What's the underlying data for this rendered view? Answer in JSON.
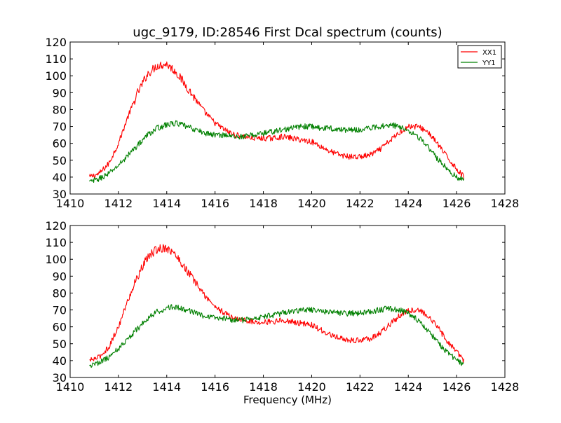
{
  "figure": {
    "title": "ugc_9179, ID:28546 First Dcal spectrum (counts)",
    "xlabel": "Frequency (MHz)"
  },
  "chart_data": [
    {
      "type": "line",
      "title": "ugc_9179, ID:28546 First Dcal spectrum (counts)",
      "xlabel": "",
      "ylabel": "",
      "xlim": [
        1410,
        1428
      ],
      "ylim": [
        30,
        120
      ],
      "xticks": [
        1410,
        1412,
        1414,
        1416,
        1418,
        1420,
        1422,
        1424,
        1426,
        1428
      ],
      "yticks": [
        30,
        40,
        50,
        60,
        70,
        80,
        90,
        100,
        110,
        120
      ],
      "grid": false,
      "legend": {
        "placement": "top-right",
        "entries": [
          "XX1",
          "YY1"
        ]
      },
      "series": [
        {
          "name": "XX1",
          "color": "#ff0000",
          "x": [
            1410.8,
            1411.2,
            1411.6,
            1412.0,
            1412.4,
            1412.8,
            1413.2,
            1413.6,
            1414.0,
            1414.4,
            1414.8,
            1415.2,
            1415.6,
            1416.0,
            1416.4,
            1416.8,
            1417.2,
            1417.6,
            1418.0,
            1418.4,
            1418.8,
            1419.2,
            1419.6,
            1420.0,
            1420.4,
            1420.8,
            1421.2,
            1421.6,
            1422.0,
            1422.4,
            1422.8,
            1423.2,
            1423.6,
            1424.0,
            1424.4,
            1424.8,
            1425.2,
            1425.6,
            1426.0,
            1426.3
          ],
          "values": [
            40,
            42,
            48,
            60,
            76,
            90,
            101,
            106,
            107,
            102,
            94,
            86,
            78,
            72,
            68,
            65,
            64,
            63,
            63,
            63,
            64,
            63,
            62,
            61,
            58,
            55,
            53,
            52,
            52,
            53,
            56,
            61,
            66,
            70,
            70,
            67,
            60,
            52,
            45,
            40
          ]
        },
        {
          "name": "YY1",
          "color": "#008000",
          "x": [
            1410.8,
            1411.2,
            1411.6,
            1412.0,
            1412.4,
            1412.8,
            1413.2,
            1413.6,
            1414.0,
            1414.4,
            1414.8,
            1415.2,
            1415.6,
            1416.0,
            1416.4,
            1416.8,
            1417.2,
            1417.6,
            1418.0,
            1418.4,
            1418.8,
            1419.2,
            1419.6,
            1420.0,
            1420.4,
            1420.8,
            1421.2,
            1421.6,
            1422.0,
            1422.4,
            1422.8,
            1423.2,
            1423.6,
            1424.0,
            1424.4,
            1424.8,
            1425.2,
            1425.6,
            1426.0,
            1426.3
          ],
          "values": [
            37,
            39,
            42,
            47,
            53,
            59,
            65,
            69,
            71,
            72,
            70,
            68,
            66,
            65,
            65,
            64,
            64,
            65,
            66,
            67,
            68,
            69,
            70,
            70,
            69,
            69,
            68,
            68,
            68,
            69,
            70,
            71,
            70,
            68,
            64,
            58,
            51,
            45,
            40,
            38
          ]
        }
      ]
    },
    {
      "type": "line",
      "title": "",
      "xlabel": "Frequency (MHz)",
      "ylabel": "",
      "xlim": [
        1410,
        1428
      ],
      "ylim": [
        30,
        120
      ],
      "xticks": [
        1410,
        1412,
        1414,
        1416,
        1418,
        1420,
        1422,
        1424,
        1426,
        1428
      ],
      "yticks": [
        30,
        40,
        50,
        60,
        70,
        80,
        90,
        100,
        110,
        120
      ],
      "grid": false,
      "legend": null,
      "series": [
        {
          "color": "#ff0000",
          "x": [
            1410.8,
            1411.2,
            1411.6,
            1412.0,
            1412.4,
            1412.8,
            1413.2,
            1413.6,
            1414.0,
            1414.4,
            1414.8,
            1415.2,
            1415.6,
            1416.0,
            1416.4,
            1416.8,
            1417.2,
            1417.6,
            1418.0,
            1418.4,
            1418.8,
            1419.2,
            1419.6,
            1420.0,
            1420.4,
            1420.8,
            1421.2,
            1421.6,
            1422.0,
            1422.4,
            1422.8,
            1423.2,
            1423.6,
            1424.0,
            1424.4,
            1424.8,
            1425.2,
            1425.6,
            1426.0,
            1426.3
          ],
          "values": [
            40,
            42,
            48,
            60,
            76,
            90,
            101,
            106,
            107,
            102,
            94,
            86,
            78,
            72,
            68,
            65,
            64,
            63,
            63,
            63,
            64,
            63,
            62,
            61,
            58,
            55,
            53,
            52,
            52,
            53,
            56,
            61,
            66,
            70,
            70,
            67,
            60,
            52,
            45,
            40
          ]
        },
        {
          "color": "#008000",
          "x": [
            1410.8,
            1411.2,
            1411.6,
            1412.0,
            1412.4,
            1412.8,
            1413.2,
            1413.6,
            1414.0,
            1414.4,
            1414.8,
            1415.2,
            1415.6,
            1416.0,
            1416.4,
            1416.8,
            1417.2,
            1417.6,
            1418.0,
            1418.4,
            1418.8,
            1419.2,
            1419.6,
            1420.0,
            1420.4,
            1420.8,
            1421.2,
            1421.6,
            1422.0,
            1422.4,
            1422.8,
            1423.2,
            1423.6,
            1424.0,
            1424.4,
            1424.8,
            1425.2,
            1425.6,
            1426.0,
            1426.3
          ],
          "values": [
            37,
            39,
            42,
            47,
            53,
            59,
            65,
            69,
            71,
            72,
            70,
            68,
            66,
            65,
            65,
            64,
            64,
            65,
            66,
            67,
            68,
            69,
            70,
            70,
            69,
            69,
            68,
            68,
            68,
            69,
            70,
            71,
            70,
            68,
            64,
            58,
            51,
            45,
            40,
            38
          ]
        }
      ]
    }
  ]
}
